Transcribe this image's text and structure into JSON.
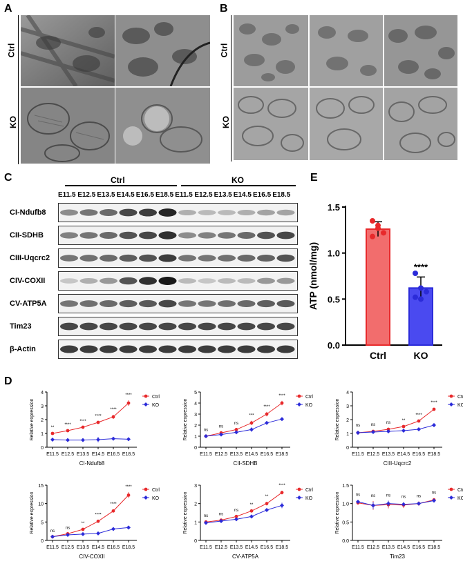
{
  "panels": {
    "A": "A",
    "B": "B",
    "C": "C",
    "D": "D",
    "E": "E"
  },
  "em_rows": {
    "ctrl": "Ctrl",
    "ko": "KO"
  },
  "western": {
    "group_ctrl": "Ctrl",
    "group_ko": "KO",
    "lanes": [
      "E11.5",
      "E12.5",
      "E13.5",
      "E14.5",
      "E16.5",
      "E18.5",
      "E11.5",
      "E12.5",
      "E13.5",
      "E14.5",
      "E16.5",
      "E18.5"
    ],
    "proteins": [
      "CI-Ndufb8",
      "CII-SDHB",
      "CIII-Uqcrc2",
      "CIV-COXII",
      "CV-ATP5A",
      "Tim23",
      "β-Actin"
    ]
  },
  "chart_data": [
    {
      "type": "bar",
      "panel": "E",
      "categories": [
        "Ctrl",
        "KO"
      ],
      "values": [
        1.26,
        0.62
      ],
      "errors": [
        0.08,
        0.12
      ],
      "points": [
        [
          1.35,
          1.3,
          1.22,
          1.18,
          1.27
        ],
        [
          0.78,
          0.62,
          0.58,
          0.52,
          0.5
        ]
      ],
      "colors": [
        "#f26d6d",
        "#4a4af0"
      ],
      "ylabel": "ATP (nmol/mg)",
      "ylim": [
        0,
        1.5
      ],
      "yticks": [
        "0.0",
        "0.5",
        "1.0",
        "1.5"
      ],
      "annotation": "****"
    },
    {
      "type": "line",
      "panel": "D",
      "xlabel": "CI-Ndufb8",
      "ylabel": "Relative expression",
      "ylim": [
        0,
        4
      ],
      "yticks": [
        "0",
        "1",
        "2",
        "3",
        "4"
      ],
      "categories": [
        "E11.5",
        "E12.5",
        "E13.5",
        "E14.5",
        "E16.5",
        "E18.5"
      ],
      "series": [
        {
          "name": "Ctrl",
          "values": [
            1.0,
            1.2,
            1.45,
            1.8,
            2.2,
            3.2
          ],
          "err": [
            0.05,
            0.05,
            0.06,
            0.08,
            0.15,
            0.2
          ]
        },
        {
          "name": "KO",
          "values": [
            0.55,
            0.52,
            0.52,
            0.55,
            0.62,
            0.58
          ],
          "err": [
            0.1,
            0.05,
            0.05,
            0.2,
            0.05,
            0.1
          ]
        }
      ],
      "sig": [
        "**",
        "****",
        "****",
        "****",
        "****",
        "****"
      ]
    },
    {
      "type": "line",
      "panel": "D",
      "xlabel": "CII-SDHB",
      "ylabel": "Relative expression",
      "ylim": [
        0,
        5
      ],
      "yticks": [
        "0",
        "1",
        "2",
        "3",
        "4",
        "5"
      ],
      "categories": [
        "E11.5",
        "E12.5",
        "E13.5",
        "E14.5",
        "E16.5",
        "E18.5"
      ],
      "series": [
        {
          "name": "Ctrl",
          "values": [
            1.0,
            1.3,
            1.6,
            2.2,
            3.0,
            4.0
          ],
          "err": [
            0.1,
            0.1,
            0.1,
            0.2,
            0.2,
            0.2
          ]
        },
        {
          "name": "KO",
          "values": [
            1.0,
            1.15,
            1.35,
            1.6,
            2.2,
            2.55
          ],
          "err": [
            0.1,
            0.1,
            0.1,
            0.2,
            0.15,
            0.15
          ]
        }
      ],
      "sig": [
        "ns",
        "ns",
        "ns",
        "***",
        "****",
        "****"
      ]
    },
    {
      "type": "line",
      "panel": "D",
      "xlabel": "CIII-Uqcrc2",
      "ylabel": "Relative expression",
      "ylim": [
        0,
        4
      ],
      "yticks": [
        "0",
        "1",
        "2",
        "3",
        "4"
      ],
      "categories": [
        "E11.5",
        "E12.5",
        "E13.5",
        "E14.5",
        "E16.5",
        "E18.5"
      ],
      "series": [
        {
          "name": "Ctrl",
          "values": [
            1.05,
            1.15,
            1.3,
            1.5,
            1.9,
            2.75
          ],
          "err": [
            0.1,
            0.1,
            0.1,
            0.05,
            0.05,
            0.1
          ]
        },
        {
          "name": "KO",
          "values": [
            1.05,
            1.1,
            1.15,
            1.2,
            1.3,
            1.6
          ],
          "err": [
            0.15,
            0.1,
            0.1,
            0.05,
            0.05,
            0.15
          ]
        }
      ],
      "sig": [
        "ns",
        "ns",
        "ns",
        "**",
        "****",
        "****"
      ]
    },
    {
      "type": "line",
      "panel": "D",
      "xlabel": "CIV-COXII",
      "ylabel": "Relative expression",
      "ylim": [
        0,
        15
      ],
      "yticks": [
        "0",
        "5",
        "10",
        "15"
      ],
      "categories": [
        "E11.5",
        "E12.5",
        "E13.5",
        "E14.5",
        "E16.5",
        "E18.5"
      ],
      "series": [
        {
          "name": "Ctrl",
          "values": [
            1.0,
            1.8,
            3.0,
            5.2,
            8.0,
            12.3
          ],
          "err": [
            0.1,
            0.2,
            0.2,
            0.3,
            0.4,
            0.8
          ]
        },
        {
          "name": "KO",
          "values": [
            1.0,
            1.5,
            1.7,
            1.9,
            3.1,
            3.5
          ],
          "err": [
            0.1,
            0.2,
            0.2,
            0.2,
            0.2,
            0.3
          ]
        }
      ],
      "sig": [
        "ns",
        "ns",
        "**",
        "****",
        "****",
        "****"
      ]
    },
    {
      "type": "line",
      "panel": "D",
      "xlabel": "CV-ATP5A",
      "ylabel": "Relative expression",
      "ylim": [
        0,
        3
      ],
      "yticks": [
        "0",
        "1",
        "2",
        "3"
      ],
      "categories": [
        "E11.5",
        "E12.5",
        "E13.5",
        "E14.5",
        "E16.5",
        "E18.5"
      ],
      "series": [
        {
          "name": "Ctrl",
          "values": [
            1.0,
            1.1,
            1.3,
            1.6,
            2.0,
            2.6
          ],
          "err": [
            0.05,
            0.05,
            0.05,
            0.05,
            0.1,
            0.1
          ]
        },
        {
          "name": "KO",
          "values": [
            0.95,
            1.05,
            1.15,
            1.3,
            1.65,
            1.9
          ],
          "err": [
            0.05,
            0.1,
            0.1,
            0.1,
            0.1,
            0.15
          ]
        }
      ],
      "sig": [
        "ns",
        "ns",
        "ns",
        "**",
        "**",
        "****"
      ]
    },
    {
      "type": "line",
      "panel": "D",
      "xlabel": "Tim23",
      "ylabel": "Relative expression",
      "ylim": [
        0,
        1.5
      ],
      "yticks": [
        "0.0",
        "0.5",
        "1.0",
        "1.5"
      ],
      "categories": [
        "E11.5",
        "E12.5",
        "E13.5",
        "E14.5",
        "E16.5",
        "E18.5"
      ],
      "series": [
        {
          "name": "Ctrl",
          "values": [
            1.02,
            0.95,
            0.97,
            0.96,
            1.0,
            1.1
          ],
          "err": [
            0.05,
            0.12,
            0.1,
            0.08,
            0.06,
            0.05
          ]
        },
        {
          "name": "KO",
          "values": [
            1.05,
            0.95,
            1.0,
            0.98,
            1.0,
            1.08
          ],
          "err": [
            0.05,
            0.1,
            0.08,
            0.06,
            0.05,
            0.05
          ]
        }
      ],
      "sig": [
        "ns",
        "ns",
        "ns",
        "ns",
        "ns",
        "ns"
      ]
    }
  ],
  "legend": {
    "ctrl": "Ctrl",
    "ko": "KO"
  },
  "colors": {
    "ctrl": "#e8292b",
    "ko": "#2b2bd9",
    "ctrl_fill": "#f26d6d",
    "ko_fill": "#4a4af0"
  }
}
